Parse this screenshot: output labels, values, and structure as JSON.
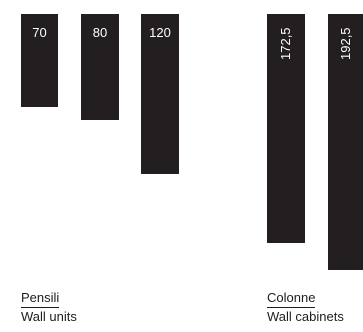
{
  "groups": [
    {
      "title_it": "Pensili",
      "title_en": "Wall units",
      "bars": [
        {
          "label": "70",
          "value": 70
        },
        {
          "label": "80",
          "value": 80
        },
        {
          "label": "120",
          "value": 120
        }
      ]
    },
    {
      "title_it": "Colonne",
      "title_en": "Wall cabinets",
      "bars": [
        {
          "label": "172,5",
          "value": 172.5
        },
        {
          "label": "192,5",
          "value": 192.5
        }
      ]
    }
  ],
  "colors": {
    "bar": "#231f20",
    "bar_text": "#ffffff",
    "text": "#1f1d1e"
  }
}
